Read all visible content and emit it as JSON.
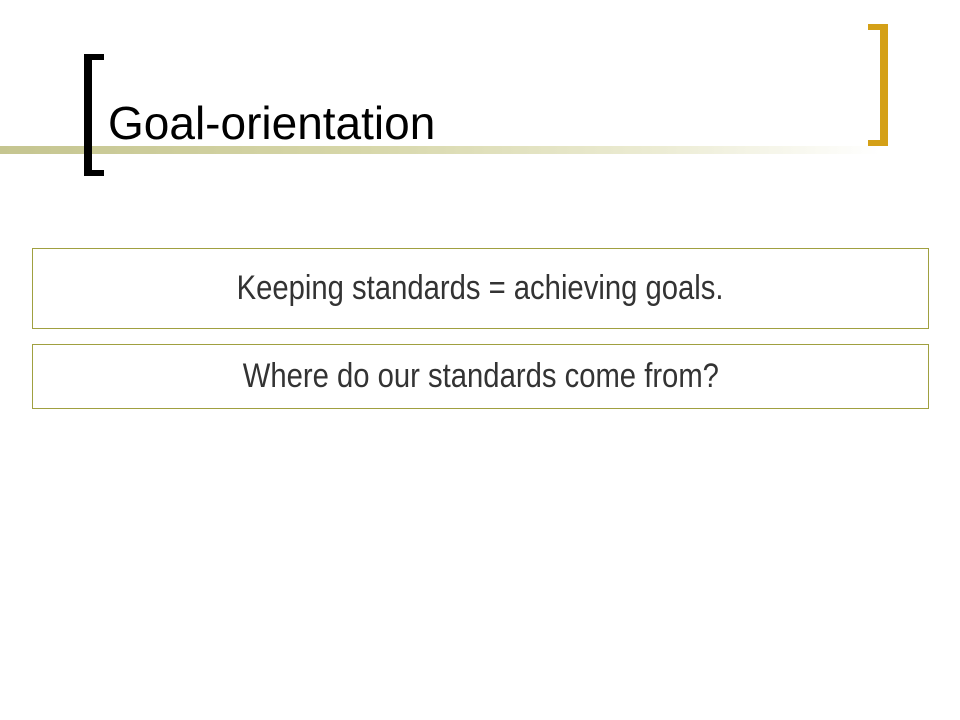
{
  "slide": {
    "title": "Goal-orientation",
    "boxes": [
      {
        "text": "Keeping standards = achieving goals."
      },
      {
        "text": "Where do our standards come from?"
      }
    ]
  },
  "colors": {
    "title_text": "#000000",
    "box_text": "#333333",
    "box_border": "#a0a040",
    "left_bracket": "#000000",
    "right_bracket": "#d4a017",
    "title_bar": "#c5c590"
  }
}
